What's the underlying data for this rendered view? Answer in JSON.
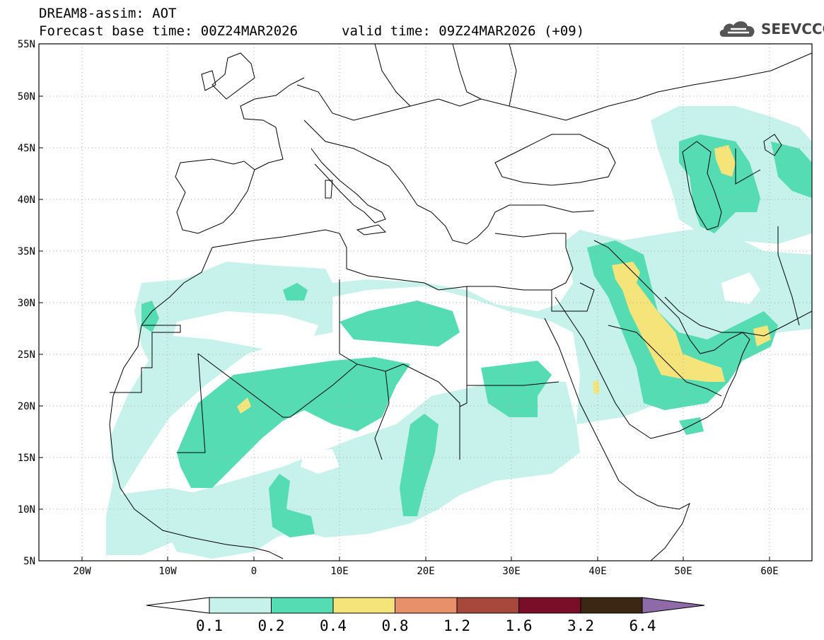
{
  "title": {
    "line1": "DREAM8-assim: AOT",
    "base_time": "Forecast base time: 00Z24MAR2026",
    "valid_time": "valid time: 09Z24MAR2026 (+09)"
  },
  "logo": {
    "text": "SEEVCCC",
    "icon": "cloud-icon"
  },
  "axes": {
    "lat_labels": [
      "55N",
      "50N",
      "45N",
      "40N",
      "35N",
      "30N",
      "25N",
      "20N",
      "15N",
      "10N",
      "5N"
    ],
    "lon_labels": [
      "20W",
      "10W",
      "0",
      "10E",
      "20E",
      "30E",
      "40E",
      "50E",
      "60E"
    ]
  },
  "colorbar": {
    "colors": [
      "#c6f2eb",
      "#55dcb2",
      "#f5e47a",
      "#e8906a",
      "#a8473c",
      "#7a0d27",
      "#3c2614",
      "#8e6aa8"
    ],
    "labels": [
      "0.1",
      "0.2",
      "0.4",
      "0.8",
      "1.2",
      "1.6",
      "3.2",
      "6.4"
    ]
  }
}
